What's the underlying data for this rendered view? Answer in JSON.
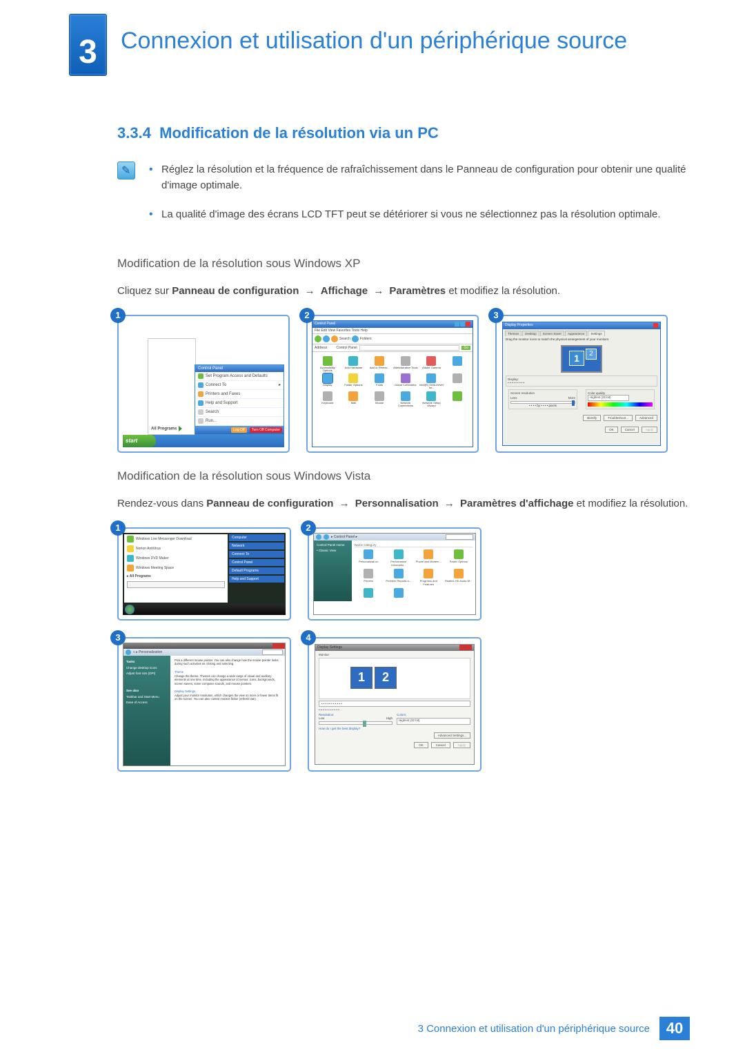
{
  "chapter": {
    "number": "3",
    "title": "Connexion et utilisation d'un périphérique source"
  },
  "section": {
    "number": "3.3.4",
    "title": "Modification de la résolution via un PC"
  },
  "notes": [
    "Réglez la résolution et la fréquence de rafraîchissement dans le Panneau de configuration pour obtenir une qualité d'image optimale.",
    "La qualité d'image des écrans LCD TFT peut se détériorer si vous ne sélectionnez pas la résolution optimale."
  ],
  "xp": {
    "subhead": "Modification de la résolution sous Windows XP",
    "instr_pre": "Cliquez sur ",
    "path": [
      "Panneau de configuration",
      "Affichage",
      "Paramètres"
    ],
    "instr_post": " et modifiez la résolution.",
    "arrow": "→",
    "shot1": {
      "num": "1",
      "cp_header": "Control Panel",
      "items": [
        "Set Program Access and Defaults",
        "Connect To",
        "Printers and Faxes",
        "Help and Support",
        "Search",
        "Run..."
      ],
      "all_programs": "All Programs",
      "logoff": "Log Off",
      "turnoff": "Turn Off Computer",
      "start": "start"
    },
    "shot2": {
      "num": "2",
      "title": "Control Panel",
      "menus": "File   Edit   View   Favorites   Tools   Help",
      "search": "Search",
      "folders": "Folders",
      "address": "Address",
      "cp_label": "Control Panel",
      "go": "Go",
      "icons": [
        {
          "lbl": "Accessibility Options",
          "c": "ic-green"
        },
        {
          "lbl": "Add Hardware",
          "c": "ic-teal"
        },
        {
          "lbl": "Add or Remov...",
          "c": "ic-orange"
        },
        {
          "lbl": "Administrative Tools",
          "c": "ic-grey"
        },
        {
          "lbl": "Adobe Gamma",
          "c": "ic-red"
        },
        {
          "lbl": "",
          "c": "ic-blue"
        },
        {
          "lbl": "Display",
          "c": "ic-blue",
          "hl": true
        },
        {
          "lbl": "Folder Options",
          "c": "ic-yellow"
        },
        {
          "lbl": "Fonts",
          "c": "ic-blue"
        },
        {
          "lbl": "Game Controllers",
          "c": "ic-purple"
        },
        {
          "lbl": "Intel(R) GMA Driver for...",
          "c": "ic-blue"
        },
        {
          "lbl": "",
          "c": "ic-grey"
        },
        {
          "lbl": "Keyboard",
          "c": "ic-grey"
        },
        {
          "lbl": "Mail",
          "c": "ic-orange"
        },
        {
          "lbl": "Mouse",
          "c": "ic-grey"
        },
        {
          "lbl": "Network Connections",
          "c": "ic-blue"
        },
        {
          "lbl": "Network Setup Wizard",
          "c": "ic-teal"
        },
        {
          "lbl": "",
          "c": "ic-green"
        }
      ]
    },
    "shot3": {
      "num": "3",
      "title": "Display Properties",
      "tabs": [
        "Themes",
        "Desktop",
        "Screen Saver",
        "Appearance",
        "Settings"
      ],
      "active_tab": 4,
      "desc": "Drag the monitor icons to match the physical arrangement of your monitors.",
      "mon1": "1",
      "mon2": "2",
      "display_label": "Display:",
      "display_val": "• • • • • • • • •",
      "res_label": "Screen resolution",
      "less": "Less",
      "more": "More",
      "res_val": "• • • • by • • • • pixels",
      "color_label": "Color quality",
      "color_val": "Highest (32 bit)",
      "btns": [
        "Identify",
        "Troubleshoot...",
        "Advanced"
      ],
      "ok": "OK",
      "cancel": "Cancel",
      "apply": "Apply"
    }
  },
  "vista": {
    "subhead": "Modification de la résolution sous Windows Vista",
    "instr_pre": "Rendez-vous dans ",
    "path": [
      "Panneau de configuration",
      "Personnalisation",
      "Paramètres d'affichage"
    ],
    "instr_post": " et modifiez la résolution.",
    "arrow": "→",
    "shot1": {
      "num": "1",
      "items": [
        {
          "lbl": "Windows Live Messenger Download",
          "c": "ic-green"
        },
        {
          "lbl": "Norton AntiVirus",
          "c": "ic-yellow"
        },
        {
          "lbl": "Windows DVD Maker",
          "c": "ic-teal"
        },
        {
          "lbl": "Windows Meeting Space",
          "c": "ic-orange"
        }
      ],
      "all_programs": "All Programs",
      "search": "Start Search",
      "right": [
        "Computer",
        "Network",
        "Connect To",
        "Control Panel",
        "Default Programs",
        "Help and Support"
      ]
    },
    "shot2": {
      "num": "2",
      "crumb": "▸ Control Panel ▸",
      "side": [
        "Control Panel Home",
        "• Classic View"
      ],
      "cols": [
        "Name",
        "Category"
      ],
      "icons": [
        {
          "lbl": "Personalizati on",
          "c": "ic-blue"
        },
        {
          "lbl": "Performance Informatio...",
          "c": "ic-teal"
        },
        {
          "lbl": "Phone and Modem...",
          "c": "ic-orange"
        },
        {
          "lbl": "Power Options",
          "c": "ic-green"
        },
        {
          "lbl": "Printers",
          "c": "ic-grey"
        },
        {
          "lbl": "Problem Reports a...",
          "c": "ic-blue"
        },
        {
          "lbl": "Programs and Features",
          "c": "ic-orange"
        },
        {
          "lbl": "Realtek HD Audio M...",
          "c": "ic-orange"
        },
        {
          "lbl": "",
          "c": "ic-teal"
        },
        {
          "lbl": "",
          "c": "ic-blue"
        }
      ]
    },
    "shot3": {
      "num": "3",
      "crumb": "« ▸ Personalization",
      "side_h1": "Tasks",
      "side1": [
        "Change desktop icons",
        "Adjust font size (DPI)"
      ],
      "side_h2": "See also",
      "side2": [
        "Taskbar and Start Menu",
        "Ease of Access"
      ],
      "main": [
        {
          "h": "",
          "t": "Pick a different mouse pointer. You can also change how the mouse pointer looks during such activities as clicking and selecting."
        },
        {
          "h": "Theme",
          "t": "Change the theme. Themes can change a wide range of visual and auditory elements at one time, including the appearance of menus, icons, backgrounds, screen savers, some computer sounds, and mouse pointers."
        },
        {
          "h": "Display Settings",
          "t": "Adjust your monitor resolution, which changes the view so more or fewer items fit on the screen. You can also control monitor flicker (refresh rate)."
        }
      ]
    },
    "shot4": {
      "num": "4",
      "title": "Display Settings",
      "tab": "Monitor",
      "mon1": "1",
      "mon2": "2",
      "dd": "• • • • • • • • • • •",
      "chk": "• • • • • • • • • • •",
      "res_label": "Resolution:",
      "low": "Low",
      "high": "High",
      "color_label": "Colors:",
      "color_val": "Highest (32 bit)",
      "link": "How do I get the best display?",
      "adv": "Advanced Settings...",
      "ok": "OK",
      "cancel": "Cancel",
      "apply": "Apply"
    }
  },
  "footer": {
    "text": "3 Connexion et utilisation d'un périphérique source",
    "page": "40"
  },
  "colors": {
    "accent": "#2a7fd6",
    "border": "#6fa3e8"
  }
}
